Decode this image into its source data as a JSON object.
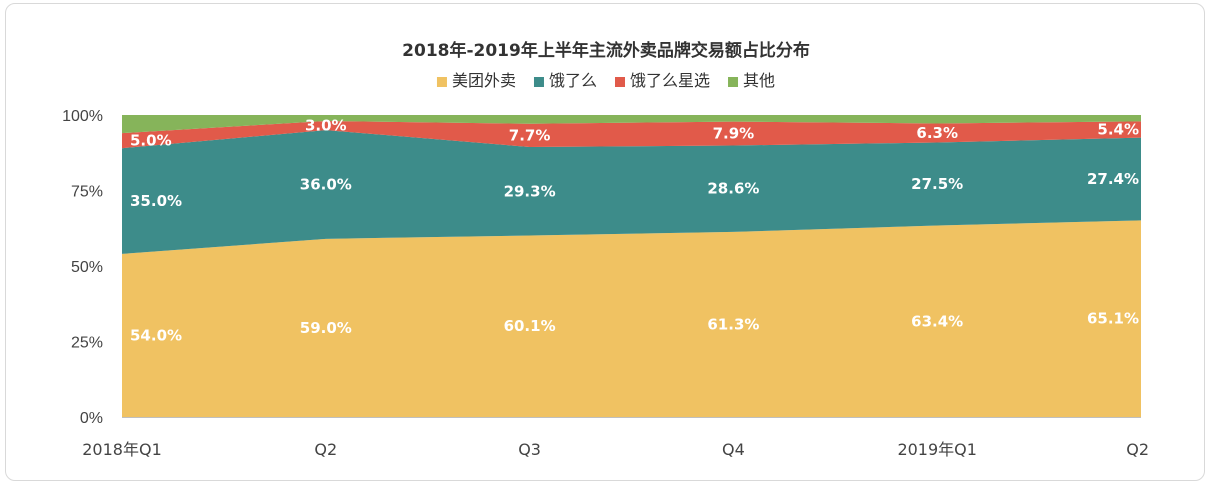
{
  "chart_data": {
    "type": "area",
    "stacked": true,
    "percent": true,
    "title": "2018年-2019年上半年主流外卖品牌交易额占比分布",
    "categories": [
      "2018年Q1",
      "Q2",
      "Q3",
      "Q4",
      "2019年Q1",
      "Q2"
    ],
    "ylim": [
      0,
      100
    ],
    "yticks": [
      "0%",
      "25%",
      "50%",
      "75%",
      "100%"
    ],
    "ytick_values": [
      0,
      25,
      50,
      75,
      100
    ],
    "legend_position": "top-center",
    "series": [
      {
        "name": "美团外卖",
        "color": "#f0c262",
        "values": [
          54.0,
          59.0,
          60.1,
          61.3,
          63.4,
          65.1
        ],
        "labels": [
          "54.0%",
          "59.0%",
          "60.1%",
          "61.3%",
          "63.4%",
          "65.1%"
        ]
      },
      {
        "name": "饿了么",
        "color": "#3d8c8a",
        "values": [
          35.0,
          36.0,
          29.3,
          28.6,
          27.5,
          27.4
        ],
        "labels": [
          "35.0%",
          "36.0%",
          "29.3%",
          "28.6%",
          "27.5%",
          "27.4%"
        ]
      },
      {
        "name": "饿了么星选",
        "color": "#e15a4a",
        "values": [
          5.0,
          3.0,
          7.7,
          7.9,
          6.3,
          5.4
        ],
        "labels": [
          "5.0%",
          "3.0%",
          "7.7%",
          "7.9%",
          "6.3%",
          "5.4%"
        ]
      },
      {
        "name": "其他",
        "color": "#86b45a",
        "values": [
          6.0,
          2.0,
          2.9,
          2.2,
          2.8,
          2.1
        ]
      }
    ]
  }
}
